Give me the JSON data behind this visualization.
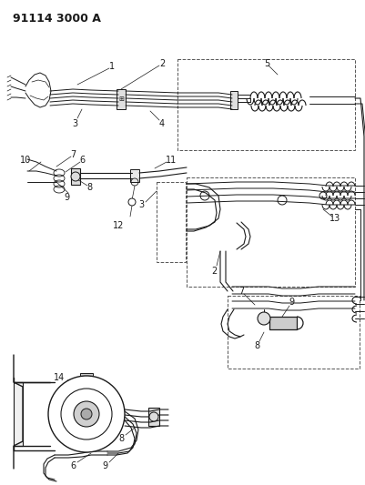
{
  "title": "91114 3000 A",
  "bg_color": "#ffffff",
  "lc": "#1a1a1a",
  "fig_width": 4.01,
  "fig_height": 5.33,
  "dpi": 100
}
